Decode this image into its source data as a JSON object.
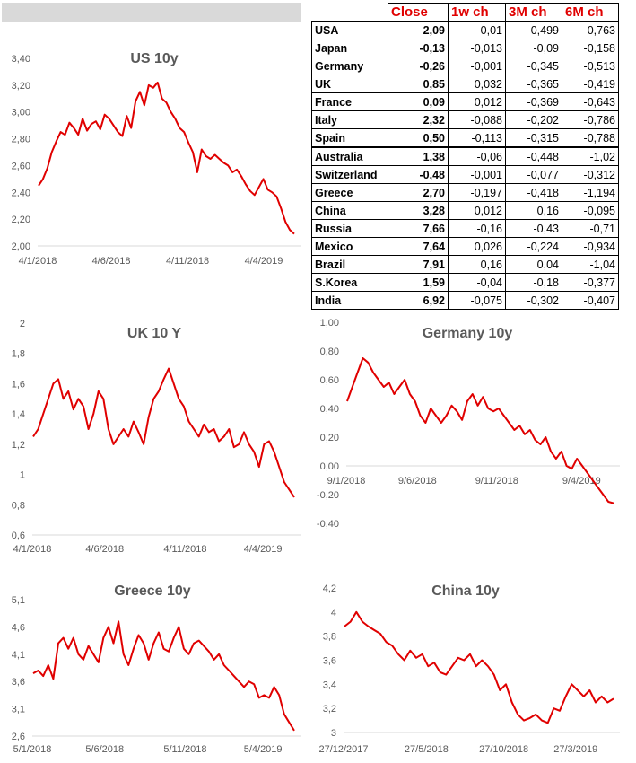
{
  "table": {
    "headers": [
      "",
      "Close",
      "1w ch",
      "3M ch",
      "6M ch"
    ],
    "rows": [
      {
        "country": "USA",
        "close": "2,09",
        "w1": "0,01",
        "m3": "-0,499",
        "m6": "-0,763"
      },
      {
        "country": "Japan",
        "close": "-0,13",
        "w1": "-0,013",
        "m3": "-0,09",
        "m6": "-0,158"
      },
      {
        "country": "Germany",
        "close": "-0,26",
        "w1": "-0,001",
        "m3": "-0,345",
        "m6": "-0,513"
      },
      {
        "country": "UK",
        "close": "0,85",
        "w1": "0,032",
        "m3": "-0,365",
        "m6": "-0,419"
      },
      {
        "country": "France",
        "close": "0,09",
        "w1": "0,012",
        "m3": "-0,369",
        "m6": "-0,643"
      },
      {
        "country": "Italy",
        "close": "2,32",
        "w1": "-0,088",
        "m3": "-0,202",
        "m6": "-0,786"
      },
      {
        "country": "Spain",
        "close": "0,50",
        "w1": "-0,113",
        "m3": "-0,315",
        "m6": "-0,788"
      },
      {
        "country": "Australia",
        "close": "1,38",
        "w1": "-0,06",
        "m3": "-0,448",
        "m6": "-1,02"
      },
      {
        "country": "Switzerland",
        "close": "-0,48",
        "w1": "-0,001",
        "m3": "-0,077",
        "m6": "-0,312"
      },
      {
        "country": "Greece",
        "close": "2,70",
        "w1": "-0,197",
        "m3": "-0,418",
        "m6": "-1,194"
      },
      {
        "country": "China",
        "close": "3,28",
        "w1": "0,012",
        "m3": "0,16",
        "m6": "-0,095"
      },
      {
        "country": "Russia",
        "close": "7,66",
        "w1": "-0,16",
        "m3": "-0,43",
        "m6": "-0,71"
      },
      {
        "country": "Mexico",
        "close": "7,64",
        "w1": "0,026",
        "m3": "-0,224",
        "m6": "-0,934"
      },
      {
        "country": "Brazil",
        "close": "7,91",
        "w1": "0,16",
        "m3": "0,04",
        "m6": "-1,04"
      },
      {
        "country": "S.Korea",
        "close": "1,59",
        "w1": "-0,04",
        "m3": "-0,18",
        "m6": "-0,377"
      },
      {
        "country": "India",
        "close": "6,92",
        "w1": "-0,075",
        "m3": "-0,302",
        "m6": "-0,407"
      }
    ]
  },
  "colors": {
    "line": "#e00000",
    "text": "#595959",
    "axis": "#d9d9d9",
    "header_red": "#e00000",
    "bar_gray": "#d9d9d9"
  },
  "chart_data": [
    {
      "id": "us",
      "type": "line",
      "title": "US 10y",
      "ylim": [
        2.0,
        3.4
      ],
      "yticks": [
        "2,00",
        "2,20",
        "2,40",
        "2,60",
        "2,80",
        "3,00",
        "3,20",
        "3,40"
      ],
      "xticks": [
        "4/1/2018",
        "4/6/2018",
        "4/11/2018",
        "4/4/2019"
      ],
      "series": [
        {
          "values": [
            2.45,
            2.5,
            2.58,
            2.7,
            2.78,
            2.85,
            2.83,
            2.92,
            2.88,
            2.83,
            2.95,
            2.86,
            2.91,
            2.93,
            2.87,
            2.98,
            2.95,
            2.9,
            2.85,
            2.82,
            2.97,
            2.88,
            3.08,
            3.15,
            3.05,
            3.2,
            3.18,
            3.22,
            3.1,
            3.07,
            3.0,
            2.95,
            2.88,
            2.85,
            2.77,
            2.7,
            2.55,
            2.72,
            2.67,
            2.65,
            2.68,
            2.65,
            2.62,
            2.6,
            2.55,
            2.57,
            2.52,
            2.46,
            2.41,
            2.38,
            2.44,
            2.5,
            2.42,
            2.4,
            2.37,
            2.28,
            2.18,
            2.12,
            2.09
          ]
        }
      ]
    },
    {
      "id": "uk",
      "type": "line",
      "title": "UK 10 Y",
      "ylim": [
        0.6,
        2.0
      ],
      "yticks": [
        "0,6",
        "0,8",
        "1",
        "1,2",
        "1,4",
        "1,6",
        "1,8",
        "2"
      ],
      "xticks": [
        "4/1/2018",
        "4/6/2018",
        "4/11/2018",
        "4/4/2019"
      ],
      "series": [
        {
          "values": [
            1.25,
            1.3,
            1.4,
            1.5,
            1.6,
            1.63,
            1.5,
            1.55,
            1.43,
            1.5,
            1.45,
            1.3,
            1.4,
            1.55,
            1.5,
            1.3,
            1.2,
            1.25,
            1.3,
            1.25,
            1.35,
            1.28,
            1.2,
            1.38,
            1.5,
            1.55,
            1.63,
            1.7,
            1.6,
            1.5,
            1.45,
            1.35,
            1.3,
            1.25,
            1.33,
            1.28,
            1.3,
            1.22,
            1.25,
            1.3,
            1.18,
            1.2,
            1.28,
            1.2,
            1.15,
            1.05,
            1.2,
            1.22,
            1.15,
            1.05,
            0.95,
            0.9,
            0.85
          ]
        }
      ]
    },
    {
      "id": "de",
      "type": "line",
      "title": "Germany 10y",
      "ylim": [
        -0.4,
        1.0
      ],
      "yticks": [
        "-0,40",
        "-0,20",
        "0,00",
        "0,20",
        "0,40",
        "0,60",
        "0,80",
        "1,00"
      ],
      "xticks": [
        "9/1/2018",
        "9/6/2018",
        "9/11/2018",
        "9/4/2019"
      ],
      "series": [
        {
          "values": [
            0.45,
            0.55,
            0.65,
            0.75,
            0.72,
            0.65,
            0.6,
            0.55,
            0.58,
            0.5,
            0.55,
            0.6,
            0.5,
            0.45,
            0.35,
            0.3,
            0.4,
            0.35,
            0.3,
            0.35,
            0.42,
            0.38,
            0.32,
            0.45,
            0.5,
            0.42,
            0.48,
            0.4,
            0.38,
            0.4,
            0.35,
            0.3,
            0.25,
            0.28,
            0.22,
            0.25,
            0.18,
            0.15,
            0.2,
            0.1,
            0.05,
            0.1,
            0.0,
            -0.02,
            0.05,
            0.0,
            -0.05,
            -0.1,
            -0.15,
            -0.2,
            -0.25,
            -0.26
          ]
        }
      ]
    },
    {
      "id": "gr",
      "type": "line",
      "title": "Greece 10y",
      "ylim": [
        2.6,
        5.1
      ],
      "yticks": [
        "2,6",
        "3,1",
        "3,6",
        "4,1",
        "4,6",
        "5,1"
      ],
      "xticks": [
        "5/1/2018",
        "5/6/2018",
        "5/11/2018",
        "5/4/2019"
      ],
      "series": [
        {
          "values": [
            3.75,
            3.8,
            3.7,
            3.9,
            3.65,
            4.3,
            4.4,
            4.2,
            4.4,
            4.1,
            4.0,
            4.25,
            4.1,
            3.95,
            4.4,
            4.6,
            4.3,
            4.7,
            4.1,
            3.9,
            4.2,
            4.45,
            4.3,
            4.0,
            4.3,
            4.5,
            4.2,
            4.15,
            4.4,
            4.6,
            4.2,
            4.1,
            4.3,
            4.35,
            4.25,
            4.15,
            4.0,
            4.1,
            3.9,
            3.8,
            3.7,
            3.6,
            3.5,
            3.6,
            3.55,
            3.3,
            3.35,
            3.3,
            3.5,
            3.35,
            3.0,
            2.85,
            2.7
          ]
        }
      ]
    },
    {
      "id": "cn",
      "type": "line",
      "title": "China 10y",
      "ylim": [
        3.0,
        4.2
      ],
      "yticks": [
        "3",
        "3,2",
        "3,4",
        "3,6",
        "3,8",
        "4",
        "4,2"
      ],
      "xticks": [
        "27/12/2017",
        "27/5/2018",
        "27/10/2018",
        "27/3/2019"
      ],
      "series": [
        {
          "values": [
            3.88,
            3.92,
            4.0,
            3.92,
            3.88,
            3.85,
            3.82,
            3.75,
            3.72,
            3.65,
            3.6,
            3.68,
            3.62,
            3.65,
            3.55,
            3.58,
            3.5,
            3.48,
            3.55,
            3.62,
            3.6,
            3.65,
            3.55,
            3.6,
            3.55,
            3.48,
            3.35,
            3.4,
            3.25,
            3.15,
            3.1,
            3.12,
            3.15,
            3.1,
            3.08,
            3.2,
            3.18,
            3.3,
            3.4,
            3.35,
            3.3,
            3.35,
            3.25,
            3.3,
            3.25,
            3.28
          ]
        }
      ]
    }
  ]
}
